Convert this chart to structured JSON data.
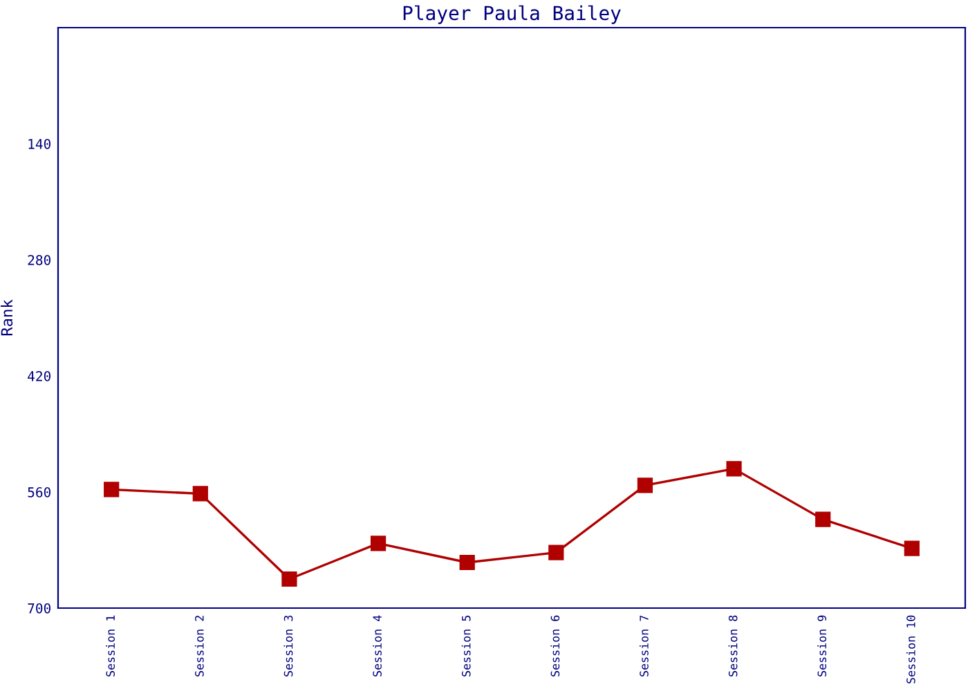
{
  "chart_data": {
    "type": "line",
    "title": "Player Paula Bailey",
    "ylabel": "Rank",
    "categories": [
      "Session 1",
      "Session 2",
      "Session 3",
      "Session 4",
      "Session 5",
      "Session 6",
      "Session 7",
      "Session 8",
      "Session 9",
      "Session 10"
    ],
    "series": [
      {
        "color": "#b00000",
        "values": [
          557,
          562,
          665,
          622,
          645,
          633,
          552,
          532,
          593,
          628
        ]
      }
    ],
    "ylim": [
      700,
      0
    ],
    "yticks": [
      140,
      280,
      420,
      560,
      700
    ],
    "marker": "square",
    "line_style": "solid",
    "grid": false,
    "legend": false
  }
}
